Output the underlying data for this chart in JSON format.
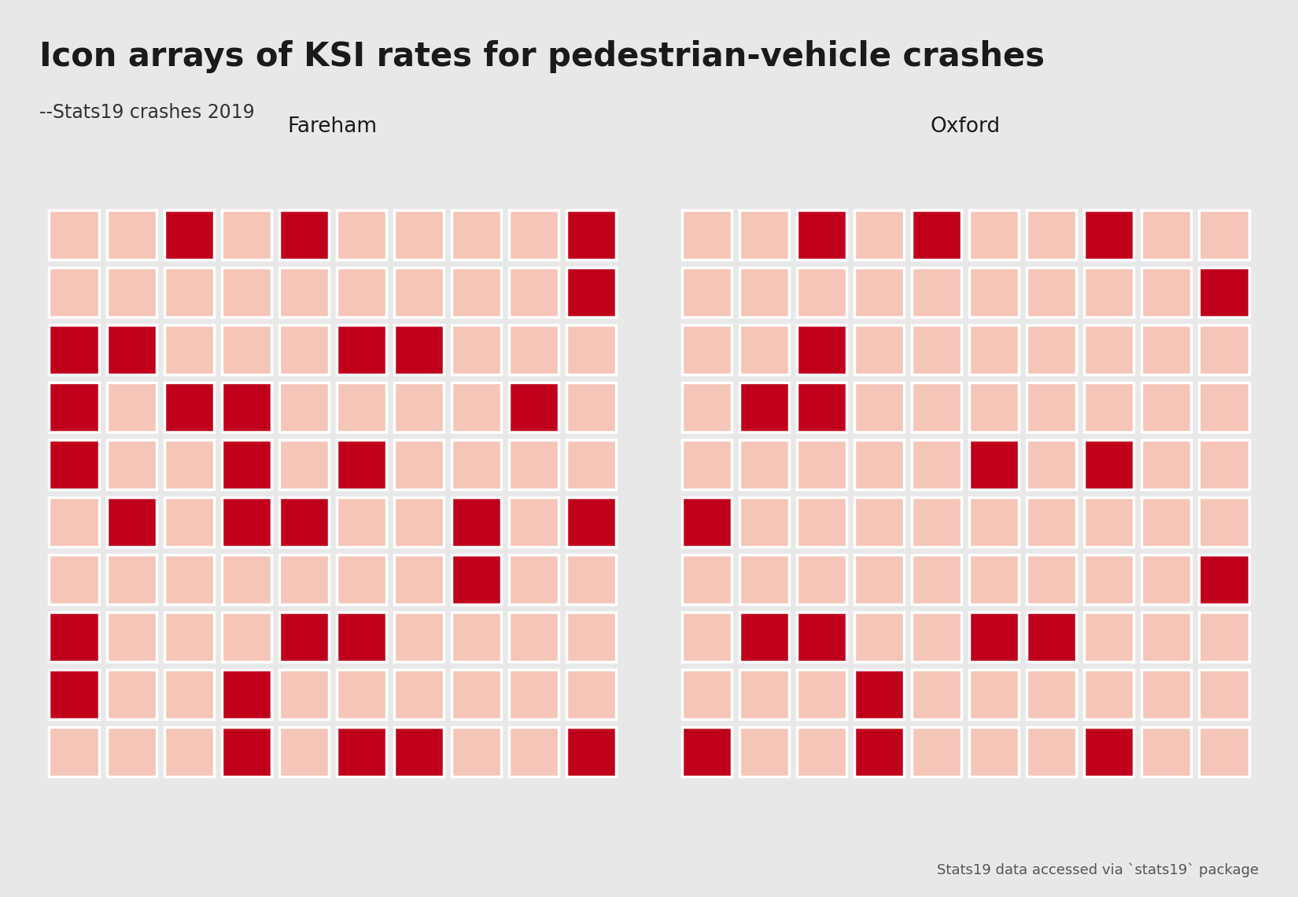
{
  "title": "Icon arrays of KSI rates for pedestrian-vehicle crashes",
  "subtitle": "--Stats19 crashes 2019",
  "footnote": "Stats19 data accessed via `stats19` package",
  "background_color": "#e8e8e8",
  "panel_background": "#ffffff",
  "dark_color": "#c0001a",
  "light_color": "#f5c5b8",
  "grid_rows": 10,
  "grid_cols": 10,
  "panels": [
    {
      "label": "Fareham",
      "grid": [
        [
          0,
          0,
          1,
          0,
          1,
          0,
          0,
          0,
          0,
          1
        ],
        [
          0,
          0,
          0,
          0,
          0,
          0,
          0,
          0,
          0,
          1
        ],
        [
          1,
          1,
          0,
          0,
          0,
          1,
          1,
          0,
          0,
          0
        ],
        [
          1,
          0,
          1,
          1,
          0,
          0,
          0,
          0,
          1,
          0
        ],
        [
          1,
          0,
          0,
          1,
          0,
          1,
          0,
          0,
          0,
          0
        ],
        [
          0,
          1,
          0,
          1,
          1,
          0,
          0,
          1,
          0,
          1
        ],
        [
          0,
          0,
          0,
          0,
          0,
          0,
          0,
          1,
          0,
          0
        ],
        [
          1,
          0,
          0,
          0,
          1,
          1,
          0,
          0,
          0,
          0
        ],
        [
          1,
          0,
          0,
          1,
          0,
          0,
          0,
          0,
          0,
          0
        ],
        [
          0,
          0,
          0,
          1,
          0,
          1,
          1,
          0,
          0,
          1
        ]
      ]
    },
    {
      "label": "Oxford",
      "grid": [
        [
          0,
          0,
          1,
          0,
          1,
          0,
          0,
          1,
          0,
          0
        ],
        [
          0,
          0,
          0,
          0,
          0,
          0,
          0,
          0,
          0,
          1
        ],
        [
          0,
          0,
          1,
          0,
          0,
          0,
          0,
          0,
          0,
          0
        ],
        [
          0,
          1,
          1,
          0,
          0,
          0,
          0,
          0,
          0,
          0
        ],
        [
          0,
          0,
          0,
          0,
          0,
          1,
          0,
          1,
          0,
          0
        ],
        [
          1,
          0,
          0,
          0,
          0,
          0,
          0,
          0,
          0,
          0
        ],
        [
          0,
          0,
          0,
          0,
          0,
          0,
          0,
          0,
          0,
          1
        ],
        [
          0,
          1,
          1,
          0,
          0,
          1,
          1,
          0,
          0,
          0
        ],
        [
          0,
          0,
          0,
          1,
          0,
          0,
          0,
          0,
          0,
          0
        ],
        [
          1,
          0,
          0,
          1,
          0,
          0,
          0,
          1,
          0,
          0
        ]
      ]
    }
  ]
}
